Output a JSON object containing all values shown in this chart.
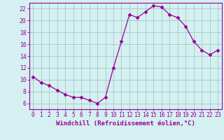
{
  "x": [
    0,
    1,
    2,
    3,
    4,
    5,
    6,
    7,
    8,
    9,
    10,
    11,
    12,
    13,
    14,
    15,
    16,
    17,
    18,
    19,
    20,
    21,
    22,
    23
  ],
  "y": [
    10.5,
    9.5,
    9.0,
    8.2,
    7.5,
    7.0,
    7.0,
    6.5,
    6.0,
    7.0,
    12.0,
    16.5,
    21.0,
    20.5,
    21.5,
    22.5,
    22.3,
    21.0,
    20.5,
    19.0,
    16.5,
    15.0,
    14.2,
    15.0
  ],
  "line_color": "#990099",
  "marker": "D",
  "marker_size": 2.5,
  "bg_color": "#d4f0f0",
  "grid_color": "#aacccc",
  "xlabel": "Windchill (Refroidissement éolien,°C)",
  "xlim": [
    -0.5,
    23.5
  ],
  "ylim": [
    5.0,
    23.0
  ],
  "yticks": [
    6,
    8,
    10,
    12,
    14,
    16,
    18,
    20,
    22
  ],
  "xticks": [
    0,
    1,
    2,
    3,
    4,
    5,
    6,
    7,
    8,
    9,
    10,
    11,
    12,
    13,
    14,
    15,
    16,
    17,
    18,
    19,
    20,
    21,
    22,
    23
  ],
  "tick_color": "#990099",
  "label_fontsize": 6.5,
  "tick_fontsize": 5.8,
  "axis_color": "#990099",
  "spine_color": "#990099"
}
